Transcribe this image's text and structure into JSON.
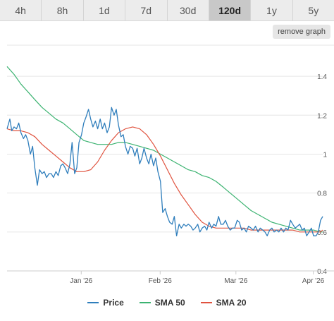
{
  "timeframe_tabs": [
    {
      "label": "4h",
      "active": false
    },
    {
      "label": "8h",
      "active": false
    },
    {
      "label": "1d",
      "active": false
    },
    {
      "label": "7d",
      "active": false
    },
    {
      "label": "30d",
      "active": false
    },
    {
      "label": "120d",
      "active": true
    },
    {
      "label": "1y",
      "active": false
    },
    {
      "label": "5y",
      "active": false
    }
  ],
  "remove_graph_label": "remove graph",
  "chart_data": {
    "type": "line",
    "title": "",
    "xlabel": "",
    "ylabel": "",
    "x_tick_labels": [
      "Jan '26",
      "Feb '26",
      "Mar '26",
      "Apr '26"
    ],
    "y_ticks": [
      0.4,
      0.6,
      0.8,
      1,
      1.2,
      1.4
    ],
    "y_tick_labels": [
      "0.4",
      "0.6",
      "0.8",
      "1",
      "1.2",
      "1.4"
    ],
    "ylim": [
      0.4,
      1.56
    ],
    "xlim": [
      0,
      100
    ],
    "x_tick_positions": [
      23.5,
      48.5,
      72.5,
      97
    ],
    "grid": true,
    "legend_position": "bottom",
    "series": [
      {
        "name": "Price",
        "color": "#2f7ebc",
        "x": [
          0,
          0.9,
          1.5,
          2.2,
          3,
          3.7,
          4.4,
          5.2,
          5.9,
          6.6,
          7.4,
          8.1,
          8.8,
          9.6,
          10.3,
          11.1,
          11.8,
          12.5,
          13.3,
          14,
          14.7,
          15.5,
          16.2,
          17,
          17.7,
          18.4,
          19.2,
          19.9,
          20.6,
          21.4,
          22.1,
          22.8,
          23.6,
          24.3,
          25,
          25.8,
          26.5,
          27.2,
          28,
          28.7,
          29.5,
          30.2,
          30.9,
          31.7,
          32.4,
          33.1,
          33.9,
          34.6,
          35.3,
          36.1,
          36.8,
          37.5,
          38.3,
          39,
          39.8,
          40.5,
          41.2,
          42,
          42.7,
          43.4,
          44.2,
          44.9,
          45.6,
          46.4,
          47.1,
          47.8,
          48.6,
          49.3,
          50.1,
          50.8,
          51.5,
          52.3,
          53,
          53.7,
          54.5,
          55.2,
          56,
          56.7,
          57.4,
          58.2,
          58.9,
          59.6,
          60.4,
          61.1,
          61.8,
          62.6,
          63.3,
          64,
          64.8,
          65.5,
          66.2,
          67,
          67.7,
          68.5,
          69.2,
          69.9,
          70.7,
          71.4,
          72.1,
          72.9,
          73.6,
          74.3,
          75.1,
          75.8,
          76.5,
          77.3,
          78,
          78.7,
          79.5,
          80.2,
          81,
          81.7,
          82.4,
          83.2,
          83.9,
          84.6,
          85.4,
          86.1,
          86.8,
          87.6,
          88.3,
          89,
          89.8,
          90.5,
          91.3,
          92,
          92.7,
          93.5,
          94.2,
          94.9,
          95.7,
          96.4,
          97.1,
          97.9,
          98.6,
          99.3,
          100
        ],
        "values": [
          1.13,
          1.18,
          1.12,
          1.14,
          1.13,
          1.16,
          1.11,
          1.08,
          1.1,
          1.07,
          1.0,
          1.04,
          0.93,
          0.84,
          0.92,
          0.9,
          0.91,
          0.88,
          0.9,
          0.9,
          0.88,
          0.91,
          0.89,
          0.94,
          0.95,
          0.93,
          0.9,
          0.95,
          1.06,
          0.9,
          0.93,
          1.06,
          1.1,
          1.16,
          1.19,
          1.23,
          1.18,
          1.14,
          1.17,
          1.13,
          1.18,
          1.13,
          1.16,
          1.11,
          1.14,
          1.24,
          1.2,
          1.23,
          1.15,
          1.09,
          1.1,
          1.04,
          1.0,
          1.04,
          1.03,
          0.99,
          1.03,
          0.95,
          0.98,
          1.03,
          0.98,
          0.95,
          1.0,
          0.94,
          0.98,
          0.91,
          0.86,
          0.7,
          0.72,
          0.68,
          0.65,
          0.64,
          0.68,
          0.58,
          0.64,
          0.62,
          0.64,
          0.63,
          0.64,
          0.63,
          0.61,
          0.62,
          0.64,
          0.6,
          0.62,
          0.63,
          0.61,
          0.65,
          0.62,
          0.64,
          0.63,
          0.68,
          0.64,
          0.64,
          0.66,
          0.63,
          0.61,
          0.62,
          0.62,
          0.66,
          0.65,
          0.61,
          0.62,
          0.6,
          0.63,
          0.62,
          0.61,
          0.63,
          0.6,
          0.62,
          0.61,
          0.6,
          0.58,
          0.61,
          0.62,
          0.6,
          0.61,
          0.6,
          0.62,
          0.6,
          0.62,
          0.61,
          0.66,
          0.64,
          0.62,
          0.63,
          0.64,
          0.61,
          0.62,
          0.58,
          0.6,
          0.62,
          0.58,
          0.58,
          0.6,
          0.66,
          0.68
        ]
      },
      {
        "name": "SMA 50",
        "color": "#3cb371",
        "x": [
          0,
          2.2,
          4.4,
          6.6,
          8.8,
          11.1,
          13.3,
          15.5,
          17.7,
          19.9,
          22.1,
          24.3,
          26.5,
          28.7,
          30.9,
          33.1,
          35.3,
          37.5,
          39.8,
          42,
          44.2,
          46.4,
          48.6,
          50.8,
          53,
          55.2,
          57.4,
          59.6,
          61.8,
          64,
          66.2,
          68.5,
          70.7,
          72.9,
          75.1,
          77.3,
          79.5,
          81.7,
          83.9,
          86.1,
          88.3,
          90.5,
          92.7,
          94.9,
          97.1,
          99.3,
          100
        ],
        "values": [
          1.45,
          1.41,
          1.36,
          1.32,
          1.28,
          1.24,
          1.21,
          1.18,
          1.16,
          1.13,
          1.1,
          1.07,
          1.06,
          1.05,
          1.05,
          1.05,
          1.06,
          1.06,
          1.05,
          1.04,
          1.03,
          1.02,
          1.0,
          0.98,
          0.96,
          0.94,
          0.92,
          0.91,
          0.89,
          0.88,
          0.86,
          0.83,
          0.8,
          0.77,
          0.74,
          0.71,
          0.69,
          0.67,
          0.65,
          0.64,
          0.63,
          0.62,
          0.61,
          0.61,
          0.61,
          0.6,
          0.6
        ]
      },
      {
        "name": "SMA 20",
        "color": "#e0533f",
        "x": [
          0,
          2.2,
          4.4,
          6.6,
          8.8,
          11.1,
          13.3,
          15.5,
          17.7,
          19.9,
          22.1,
          24.3,
          26.5,
          28.7,
          30.9,
          33.1,
          35.3,
          37.5,
          39.8,
          42,
          44.2,
          46.4,
          48.6,
          50.8,
          53,
          55.2,
          57.4,
          59.6,
          61.8,
          64,
          66.2,
          68.5,
          70.7,
          72.9,
          75.1,
          77.3,
          79.5,
          81.7,
          83.9,
          86.1,
          88.3,
          90.5,
          92.7,
          94.9,
          97.1,
          99.3,
          100
        ],
        "values": [
          1.13,
          1.12,
          1.12,
          1.11,
          1.09,
          1.05,
          1.02,
          0.99,
          0.96,
          0.93,
          0.91,
          0.91,
          0.92,
          0.96,
          1.02,
          1.07,
          1.11,
          1.13,
          1.14,
          1.13,
          1.1,
          1.05,
          0.99,
          0.92,
          0.85,
          0.79,
          0.74,
          0.69,
          0.65,
          0.63,
          0.62,
          0.62,
          0.62,
          0.62,
          0.62,
          0.61,
          0.61,
          0.61,
          0.61,
          0.61,
          0.61,
          0.61,
          0.6,
          0.6,
          0.6,
          0.6,
          0.61
        ]
      }
    ]
  }
}
